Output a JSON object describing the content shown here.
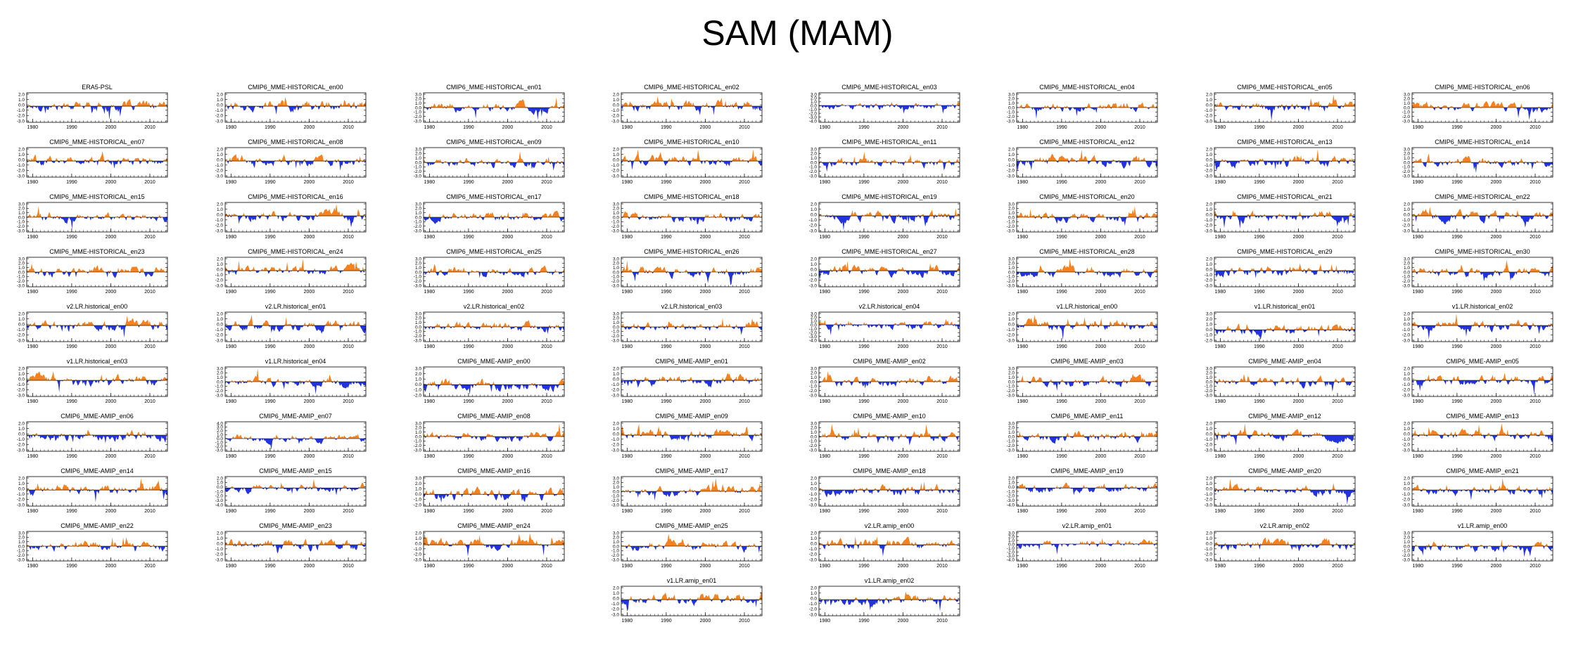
{
  "page_title": "SAM (MAM)",
  "chart_data": {
    "type": "area",
    "title": "SAM (MAM)",
    "pos_color": "#f5821f",
    "neg_color": "#2233dd",
    "x_start": 1979,
    "x_end": 2014,
    "x_ticks": [
      1980,
      1990,
      2000,
      2010
    ],
    "x_tick_labels": [
      "1980",
      "1990",
      "2000",
      "2010"
    ],
    "panels": [
      {
        "title": "ERA5-PSL",
        "yticks": [
          "2.0",
          "1.0",
          "0.0",
          "-1.0",
          "-2.0",
          "-3.0"
        ],
        "ylim": [
          -3,
          2.5
        ]
      },
      {
        "title": "CMIP6_MME-HISTORICAL_en00",
        "yticks": [
          "2.0",
          "1.0",
          "0.0",
          "-1.0",
          "-2.0",
          "-3.0"
        ],
        "ylim": [
          -3,
          2.5
        ]
      },
      {
        "title": "CMIP6_MME-HISTORICAL_en01",
        "yticks": [
          "3.0",
          "2.0",
          "1.0",
          "0.0",
          "-1.0",
          "-2.0",
          "-3.0"
        ],
        "ylim": [
          -3,
          3
        ]
      },
      {
        "title": "CMIP6_MME-HISTORICAL_en02",
        "yticks": [
          "2.0",
          "1.0",
          "0.0",
          "-1.0",
          "-2.0",
          "-3.0"
        ],
        "ylim": [
          -3,
          2.5
        ]
      },
      {
        "title": "CMIP6_MME-HISTORICAL_en03",
        "yticks": [
          "3.0",
          "2.0",
          "1.0",
          "0.0",
          "-1.0",
          "-2.0",
          "-3.0",
          "-4.0"
        ],
        "ylim": [
          -4,
          3
        ]
      },
      {
        "title": "CMIP6_MME-HISTORICAL_en04",
        "yticks": [
          "3.0",
          "2.0",
          "1.0",
          "0.0",
          "-1.0",
          "-2.0",
          "-3.0"
        ],
        "ylim": [
          -3,
          3
        ]
      },
      {
        "title": "CMIP6_MME-HISTORICAL_en05",
        "yticks": [
          "2.0",
          "1.0",
          "0.0",
          "-1.0",
          "-2.0",
          "-3.0"
        ],
        "ylim": [
          -3,
          2.5
        ]
      },
      {
        "title": "CMIP6_MME-HISTORICAL_en06",
        "yticks": [
          "3.0",
          "2.0",
          "1.0",
          "0.0",
          "-1.0",
          "-2.0",
          "-3.0"
        ],
        "ylim": [
          -3,
          3
        ]
      },
      {
        "title": "CMIP6_MME-HISTORICAL_en07",
        "yticks": [
          "2.0",
          "1.0",
          "0.0",
          "-1.0",
          "-2.0",
          "-3.0"
        ],
        "ylim": [
          -3,
          2.5
        ]
      },
      {
        "title": "CMIP6_MME-HISTORICAL_en08",
        "yticks": [
          "2.0",
          "1.0",
          "0.0",
          "-1.0",
          "-2.0",
          "-3.0"
        ],
        "ylim": [
          -3,
          2.5
        ]
      },
      {
        "title": "CMIP6_MME-HISTORICAL_en09",
        "yticks": [
          "3.0",
          "2.0",
          "1.0",
          "0.0",
          "-1.0",
          "-2.0",
          "-3.0"
        ],
        "ylim": [
          -3,
          3
        ]
      },
      {
        "title": "CMIP6_MME-HISTORICAL_en10",
        "yticks": [
          "2.0",
          "1.0",
          "0.0",
          "-1.0",
          "-2.0",
          "-3.0"
        ],
        "ylim": [
          -3,
          2.5
        ]
      },
      {
        "title": "CMIP6_MME-HISTORICAL_en11",
        "yticks": [
          "3.0",
          "2.0",
          "1.0",
          "0.0",
          "-1.0",
          "-2.0",
          "-3.0"
        ],
        "ylim": [
          -3,
          3
        ]
      },
      {
        "title": "CMIP6_MME-HISTORICAL_en12",
        "yticks": [
          "2.0",
          "1.0",
          "0.0",
          "-1.0",
          "-2.0",
          "-3.0"
        ],
        "ylim": [
          -3,
          2.5
        ]
      },
      {
        "title": "CMIP6_MME-HISTORICAL_en13",
        "yticks": [
          "2.0",
          "1.0",
          "0.0",
          "-1.0",
          "-2.0",
          "-3.0"
        ],
        "ylim": [
          -3,
          2.5
        ]
      },
      {
        "title": "CMIP6_MME-HISTORICAL_en14",
        "yticks": [
          "3.0",
          "2.0",
          "1.0",
          "0.0",
          "-1.0",
          "-2.0",
          "-3.0"
        ],
        "ylim": [
          -3,
          3
        ]
      },
      {
        "title": "CMIP6_MME-HISTORICAL_en15",
        "yticks": [
          "3.0",
          "2.0",
          "1.0",
          "0.0",
          "-1.0",
          "-2.0",
          "-3.0"
        ],
        "ylim": [
          -3,
          3
        ]
      },
      {
        "title": "CMIP6_MME-HISTORICAL_en16",
        "yticks": [
          "2.0",
          "1.0",
          "0.0",
          "-1.0",
          "-2.0",
          "-3.0"
        ],
        "ylim": [
          -3,
          2.5
        ]
      },
      {
        "title": "CMIP6_MME-HISTORICAL_en17",
        "yticks": [
          "3.0",
          "2.0",
          "1.0",
          "0.0",
          "-1.0",
          "-2.0",
          "-3.0"
        ],
        "ylim": [
          -3,
          3
        ]
      },
      {
        "title": "CMIP6_MME-HISTORICAL_en18",
        "yticks": [
          "3.0",
          "2.0",
          "1.0",
          "0.0",
          "-1.0",
          "-2.0",
          "-3.0"
        ],
        "ylim": [
          -3,
          3
        ]
      },
      {
        "title": "CMIP6_MME-HISTORICAL_en19",
        "yticks": [
          "2.0",
          "1.0",
          "0.0",
          "-1.0",
          "-2.0",
          "-3.0"
        ],
        "ylim": [
          -3,
          2.5
        ]
      },
      {
        "title": "CMIP6_MME-HISTORICAL_en20",
        "yticks": [
          "3.0",
          "2.0",
          "1.0",
          "0.0",
          "-1.0",
          "-2.0",
          "-3.0"
        ],
        "ylim": [
          -3,
          3
        ]
      },
      {
        "title": "CMIP6_MME-HISTORICAL_en21",
        "yticks": [
          "2.0",
          "1.0",
          "0.0",
          "-1.0",
          "-2.0",
          "-3.0"
        ],
        "ylim": [
          -3,
          2.5
        ]
      },
      {
        "title": "CMIP6_MME-HISTORICAL_en22",
        "yticks": [
          "2.0",
          "1.0",
          "0.0",
          "-1.0",
          "-2.0",
          "-3.0"
        ],
        "ylim": [
          -3,
          2.5
        ]
      },
      {
        "title": "CMIP6_MME-HISTORICAL_en23",
        "yticks": [
          "3.0",
          "2.0",
          "1.0",
          "0.0",
          "-1.0",
          "-2.0",
          "-3.0"
        ],
        "ylim": [
          -3,
          3
        ]
      },
      {
        "title": "CMIP6_MME-HISTORICAL_en24",
        "yticks": [
          "2.0",
          "1.0",
          "0.0",
          "-1.0",
          "-2.0",
          "-3.0"
        ],
        "ylim": [
          -3,
          2.5
        ]
      },
      {
        "title": "CMIP6_MME-HISTORICAL_en25",
        "yticks": [
          "3.0",
          "2.0",
          "1.0",
          "0.0",
          "-1.0",
          "-2.0",
          "-3.0"
        ],
        "ylim": [
          -3,
          3
        ]
      },
      {
        "title": "CMIP6_MME-HISTORICAL_en26",
        "yticks": [
          "3.0",
          "2.0",
          "1.0",
          "0.0",
          "-1.0",
          "-2.0",
          "-3.0"
        ],
        "ylim": [
          -3,
          3
        ]
      },
      {
        "title": "CMIP6_MME-HISTORICAL_en27",
        "yticks": [
          "2.0",
          "1.0",
          "0.0",
          "-1.0",
          "-2.0",
          "-3.0"
        ],
        "ylim": [
          -3,
          2.5
        ]
      },
      {
        "title": "CMIP6_MME-HISTORICAL_en28",
        "yticks": [
          "3.0",
          "2.0",
          "1.0",
          "0.0",
          "-1.0",
          "-2.0",
          "-3.0"
        ],
        "ylim": [
          -3,
          3
        ]
      },
      {
        "title": "CMIP6_MME-HISTORICAL_en29",
        "yticks": [
          "2.0",
          "1.0",
          "0.0",
          "-1.0",
          "-2.0",
          "-3.0"
        ],
        "ylim": [
          -3,
          2.5
        ]
      },
      {
        "title": "CMIP6_MME-HISTORICAL_en30",
        "yticks": [
          "3.0",
          "2.0",
          "1.0",
          "0.0",
          "-1.0",
          "-2.0",
          "-3.0"
        ],
        "ylim": [
          -3,
          3
        ]
      },
      {
        "title": "v2.LR.historical_en00",
        "yticks": [
          "2.0",
          "1.0",
          "0.0",
          "-1.0",
          "-2.0",
          "-3.0"
        ],
        "ylim": [
          -3,
          2.5
        ]
      },
      {
        "title": "v2.LR.historical_en01",
        "yticks": [
          "2.0",
          "1.0",
          "0.0",
          "-1.0",
          "-2.0",
          "-3.0"
        ],
        "ylim": [
          -3,
          2.5
        ]
      },
      {
        "title": "v2.LR.historical_en02",
        "yticks": [
          "3.0",
          "2.0",
          "1.0",
          "0.0",
          "-1.0",
          "-2.0",
          "-3.0"
        ],
        "ylim": [
          -3,
          3
        ]
      },
      {
        "title": "v2.LR.historical_en03",
        "yticks": [
          "3.0",
          "2.0",
          "1.0",
          "0.0",
          "-1.0",
          "-2.0",
          "-3.0"
        ],
        "ylim": [
          -3,
          3
        ]
      },
      {
        "title": "v2.LR.historical_en04",
        "yticks": [
          "3.0",
          "2.0",
          "1.0",
          "0.0",
          "-1.0",
          "-2.0",
          "-3.0",
          "-4.0"
        ],
        "ylim": [
          -4,
          3
        ]
      },
      {
        "title": "v1.LR.historical_en00",
        "yticks": [
          "2.0",
          "1.0",
          "0.0",
          "-1.0",
          "-2.0",
          "-3.0"
        ],
        "ylim": [
          -3,
          2.5
        ]
      },
      {
        "title": "v1.LR.historical_en01",
        "yticks": [
          "3.0",
          "2.0",
          "1.0",
          "0.0",
          "-1.0",
          "-2.0"
        ],
        "ylim": [
          -2,
          3
        ]
      },
      {
        "title": "v1.LR.historical_en02",
        "yticks": [
          "2.0",
          "1.0",
          "0.0",
          "-1.0",
          "-2.0",
          "-3.0"
        ],
        "ylim": [
          -3,
          2.5
        ]
      },
      {
        "title": "v1.LR.historical_en03",
        "yticks": [
          "2.0",
          "1.0",
          "0.0",
          "-1.0",
          "-2.0",
          "-3.0"
        ],
        "ylim": [
          -3,
          2.5
        ]
      },
      {
        "title": "v1.LR.historical_en04",
        "yticks": [
          "3.0",
          "2.0",
          "1.0",
          "0.0",
          "-1.0",
          "-2.0",
          "-3.0"
        ],
        "ylim": [
          -3,
          3
        ]
      },
      {
        "title": "CMIP6_MME-AMIP_en00",
        "yticks": [
          "3.0",
          "2.0",
          "1.0",
          "0.0",
          "-1.0",
          "-2.0"
        ],
        "ylim": [
          -2,
          3
        ]
      },
      {
        "title": "CMIP6_MME-AMIP_en01",
        "yticks": [
          "2.0",
          "1.0",
          "0.0",
          "-1.0",
          "-2.0",
          "-3.0"
        ],
        "ylim": [
          -3,
          2.5
        ]
      },
      {
        "title": "CMIP6_MME-AMIP_en02",
        "yticks": [
          "3.0",
          "2.0",
          "1.0",
          "0.0",
          "-1.0",
          "-2.0",
          "-3.0"
        ],
        "ylim": [
          -3,
          3
        ]
      },
      {
        "title": "CMIP6_MME-AMIP_en03",
        "yticks": [
          "3.0",
          "2.0",
          "1.0",
          "0.0",
          "-1.0",
          "-2.0",
          "-3.0"
        ],
        "ylim": [
          -3,
          3
        ]
      },
      {
        "title": "CMIP6_MME-AMIP_en04",
        "yticks": [
          "3.0",
          "2.0",
          "1.0",
          "0.0",
          "-1.0",
          "-2.0",
          "-3.0"
        ],
        "ylim": [
          -3,
          3
        ]
      },
      {
        "title": "CMIP6_MME-AMIP_en05",
        "yticks": [
          "2.0",
          "1.0",
          "0.0",
          "-1.0",
          "-2.0",
          "-3.0"
        ],
        "ylim": [
          -3,
          2.5
        ]
      },
      {
        "title": "CMIP6_MME-AMIP_en06",
        "yticks": [
          "2.0",
          "1.0",
          "0.0",
          "-1.0",
          "-2.0",
          "-3.0"
        ],
        "ylim": [
          -3,
          2.5
        ]
      },
      {
        "title": "CMIP6_MME-AMIP_en07",
        "yticks": [
          "4.0",
          "3.0",
          "2.0",
          "1.0",
          "0.0",
          "-1.0",
          "-2.0",
          "-3.0"
        ],
        "ylim": [
          -3,
          4
        ]
      },
      {
        "title": "CMIP6_MME-AMIP_en08",
        "yticks": [
          "3.0",
          "2.0",
          "1.0",
          "0.0",
          "-1.0",
          "-2.0",
          "-3.0"
        ],
        "ylim": [
          -3,
          3
        ]
      },
      {
        "title": "CMIP6_MME-AMIP_en09",
        "yticks": [
          "2.0",
          "1.0",
          "0.0",
          "-1.0",
          "-2.0",
          "-3.0"
        ],
        "ylim": [
          -3,
          2.5
        ]
      },
      {
        "title": "CMIP6_MME-AMIP_en10",
        "yticks": [
          "3.0",
          "2.0",
          "1.0",
          "0.0",
          "-1.0",
          "-2.0",
          "-3.0"
        ],
        "ylim": [
          -3,
          3
        ]
      },
      {
        "title": "CMIP6_MME-AMIP_en11",
        "yticks": [
          "3.0",
          "2.0",
          "1.0",
          "0.0",
          "-1.0",
          "-2.0",
          "-3.0"
        ],
        "ylim": [
          -3,
          3
        ]
      },
      {
        "title": "CMIP6_MME-AMIP_en12",
        "yticks": [
          "2.0",
          "1.0",
          "0.0",
          "-1.0",
          "-2.0",
          "-3.0"
        ],
        "ylim": [
          -3,
          2.5
        ]
      },
      {
        "title": "CMIP6_MME-AMIP_en13",
        "yticks": [
          "2.0",
          "1.0",
          "0.0",
          "-1.0",
          "-2.0",
          "-3.0"
        ],
        "ylim": [
          -3,
          2.5
        ]
      },
      {
        "title": "CMIP6_MME-AMIP_en14",
        "yticks": [
          "2.0",
          "1.0",
          "0.0",
          "-1.0",
          "-2.0",
          "-3.0"
        ],
        "ylim": [
          -3,
          2.5
        ]
      },
      {
        "title": "CMIP6_MME-AMIP_en15",
        "yticks": [
          "2.0",
          "1.0",
          "0.0",
          "-1.0",
          "-2.0",
          "-3.0",
          "-4.0"
        ],
        "ylim": [
          -4,
          2.5
        ]
      },
      {
        "title": "CMIP6_MME-AMIP_en16",
        "yticks": [
          "3.0",
          "2.0",
          "1.0",
          "0.0",
          "-1.0",
          "-2.0"
        ],
        "ylim": [
          -2,
          3
        ]
      },
      {
        "title": "CMIP6_MME-AMIP_en17",
        "yticks": [
          "3.0",
          "2.0",
          "1.0",
          "0.0",
          "-1.0",
          "-2.0",
          "-3.0"
        ],
        "ylim": [
          -3,
          3
        ]
      },
      {
        "title": "CMIP6_MME-AMIP_en18",
        "yticks": [
          "2.0",
          "1.0",
          "0.0",
          "-1.0",
          "-2.0",
          "-3.0"
        ],
        "ylim": [
          -3,
          2.5
        ]
      },
      {
        "title": "CMIP6_MME-AMIP_en19",
        "yticks": [
          "2.0",
          "1.0",
          "0.0",
          "-1.0",
          "-2.0",
          "-3.0",
          "-4.0"
        ],
        "ylim": [
          -4,
          2.5
        ]
      },
      {
        "title": "CMIP6_MME-AMIP_en20",
        "yticks": [
          "2.0",
          "1.0",
          "0.0",
          "-1.0",
          "-2.0",
          "-3.0"
        ],
        "ylim": [
          -3,
          2.5
        ]
      },
      {
        "title": "CMIP6_MME-AMIP_en21",
        "yticks": [
          "2.0",
          "1.0",
          "0.0",
          "-1.0",
          "-2.0",
          "-3.0"
        ],
        "ylim": [
          -3,
          2.5
        ]
      },
      {
        "title": "CMIP6_MME-AMIP_en22",
        "yticks": [
          "3.0",
          "2.0",
          "1.0",
          "0.0",
          "-1.0",
          "-2.0",
          "-3.0"
        ],
        "ylim": [
          -3,
          3
        ]
      },
      {
        "title": "CMIP6_MME-AMIP_en23",
        "yticks": [
          "2.0",
          "1.0",
          "0.0",
          "-1.0",
          "-2.0",
          "-3.0"
        ],
        "ylim": [
          -3,
          2.5
        ]
      },
      {
        "title": "CMIP6_MME-AMIP_en24",
        "yticks": [
          "2.0",
          "1.0",
          "0.0",
          "-1.0",
          "-2.0",
          "-3.0"
        ],
        "ylim": [
          -3,
          2.5
        ]
      },
      {
        "title": "CMIP6_MME-AMIP_en25",
        "yticks": [
          "3.0",
          "2.0",
          "1.0",
          "0.0",
          "-1.0",
          "-2.0",
          "-3.0"
        ],
        "ylim": [
          -3,
          3
        ]
      },
      {
        "title": "v2.LR.amip_en00",
        "yticks": [
          "2.0",
          "1.0",
          "0.0",
          "-1.0",
          "-2.0",
          "-3.0"
        ],
        "ylim": [
          -3,
          2.5
        ]
      },
      {
        "title": "v2.LR.amip_en01",
        "yticks": [
          "3.0",
          "2.0",
          "1.0",
          "0.0",
          "-1.0",
          "-2.0",
          "-3.0",
          "-4.0"
        ],
        "ylim": [
          -4,
          3
        ]
      },
      {
        "title": "v2.LR.amip_en02",
        "yticks": [
          "2.0",
          "1.0",
          "0.0",
          "-1.0",
          "-2.0",
          "-3.0"
        ],
        "ylim": [
          -3,
          2.5
        ]
      },
      {
        "title": "v1.LR.amip_en00",
        "yticks": [
          "3.0",
          "2.0",
          "1.0",
          "0.0",
          "-1.0",
          "-2.0",
          "-3.0"
        ],
        "ylim": [
          -3,
          3
        ]
      },
      {
        "title": "v1.LR.amip_en01",
        "yticks": [
          "2.0",
          "1.0",
          "0.0",
          "-1.0",
          "-2.0",
          "-3.0"
        ],
        "ylim": [
          -3,
          2.5
        ]
      },
      {
        "title": "v1.LR.amip_en02",
        "yticks": [
          "2.0",
          "1.0",
          "0.0",
          "-1.0",
          "-2.0",
          "-3.0"
        ],
        "ylim": [
          -3,
          2.5
        ]
      }
    ]
  }
}
